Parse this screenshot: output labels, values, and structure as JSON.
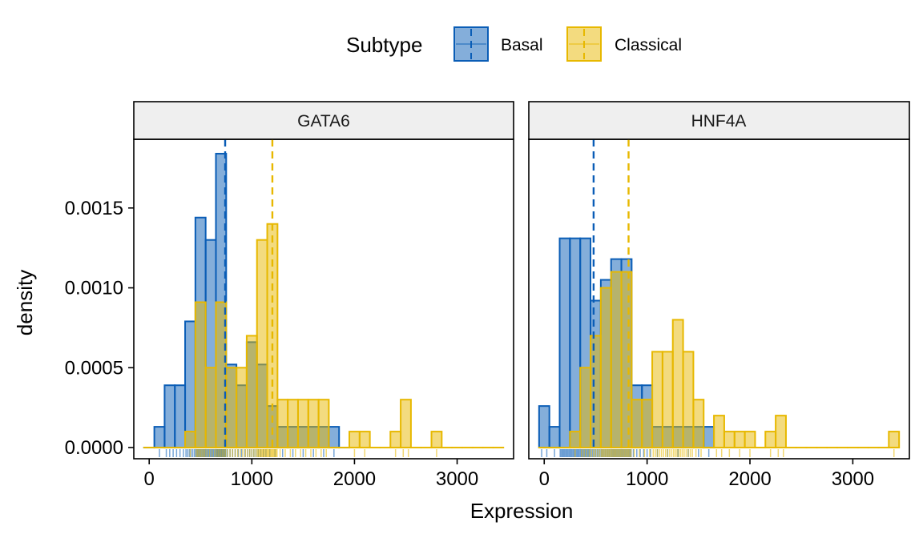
{
  "chart_data": {
    "type": "histogram",
    "xlabel": "Expression",
    "ylabel": "density",
    "legend": {
      "title": "Subtype",
      "position": "top",
      "entries": [
        {
          "name": "Basal",
          "color": "#0A5DB6"
        },
        {
          "name": "Classical",
          "color": "#E7B800"
        }
      ]
    },
    "binwidth": 100,
    "xlim": [
      -150,
      3550
    ],
    "ylim": [
      -7e-05,
      0.00193
    ],
    "x_ticks": [
      0,
      1000,
      2000,
      3000
    ],
    "y_ticks": [
      0.0,
      0.0005,
      0.001,
      0.0015
    ],
    "y_tick_labels": [
      "0.0000",
      "0.0005",
      "0.0010",
      "0.0015"
    ],
    "x_tick_labels": [
      "0",
      "1000",
      "2000",
      "3000"
    ],
    "grid": false,
    "panels": [
      {
        "strip": "GATA6",
        "series": [
          {
            "name": "Basal",
            "bin_centers": [
              0,
              100,
              200,
              300,
              400,
              500,
              600,
              700,
              800,
              900,
              1000,
              1100,
              1200,
              1300,
              1400,
              1500,
              1600,
              1700,
              1800,
              1900
            ],
            "density": [
              0,
              0.00013,
              0.00039,
              0.00039,
              0.00079,
              0.00144,
              0.0013,
              0.00184,
              0.00052,
              0.00039,
              0.00066,
              0.00052,
              0.00026,
              0.00013,
              0.00013,
              0.00013,
              0.00013,
              0.00013,
              0.00013,
              0
            ],
            "mean": 740
          },
          {
            "name": "Classical",
            "bin_centers": [
              0,
              100,
              200,
              300,
              400,
              500,
              600,
              700,
              800,
              900,
              1000,
              1100,
              1200,
              1300,
              1400,
              1500,
              1600,
              1700,
              1800,
              1900,
              2000,
              2100,
              2200,
              2300,
              2400,
              2500,
              2600,
              2700,
              2800,
              2900,
              3000,
              3100,
              3200,
              3300,
              3400
            ],
            "density": [
              0,
              0,
              0,
              0,
              0.0001,
              0.00091,
              0.0005,
              0.00091,
              0.0005,
              0.0005,
              0.0007,
              0.0013,
              0.0014,
              0.0003,
              0.0003,
              0.0003,
              0.0003,
              0.0003,
              0,
              0,
              0.0001,
              0.0001,
              0,
              0,
              0.0001,
              0.0003,
              0,
              0,
              0.0001,
              0,
              0,
              0,
              0,
              0,
              0
            ],
            "mean": 1200
          }
        ]
      },
      {
        "strip": "HNF4A",
        "series": [
          {
            "name": "Basal",
            "bin_centers": [
              0,
              100,
              200,
              300,
              400,
              500,
              600,
              700,
              800,
              900,
              1000,
              1100,
              1200,
              1300,
              1400,
              1500,
              1600
            ],
            "density": [
              0.00026,
              0.00013,
              0.00131,
              0.00131,
              0.00131,
              0.00092,
              0.00105,
              0.00118,
              0.00118,
              0.00039,
              0.00039,
              0.00013,
              0.00013,
              0.00013,
              0.00013,
              0.00013,
              0.00013
            ],
            "mean": 480
          },
          {
            "name": "Classical",
            "bin_centers": [
              0,
              100,
              200,
              300,
              400,
              500,
              600,
              700,
              800,
              900,
              1000,
              1100,
              1200,
              1300,
              1400,
              1500,
              1600,
              1700,
              1800,
              1900,
              2000,
              2100,
              2200,
              2300,
              2400,
              2500,
              2600,
              2700,
              2800,
              2900,
              3000,
              3100,
              3200,
              3300,
              3400
            ],
            "density": [
              0,
              0,
              0,
              0.0001,
              0.0005,
              0.0007,
              0.001,
              0.0011,
              0.0011,
              0.0003,
              0.0003,
              0.0006,
              0.0006,
              0.0008,
              0.0006,
              0.0003,
              0,
              0.0002,
              0.0001,
              0.0001,
              0.0001,
              0,
              0.0001,
              0.0002,
              0,
              0,
              0,
              0,
              0,
              0,
              0,
              0,
              0,
              0,
              0.0001
            ],
            "mean": 820
          }
        ]
      }
    ]
  }
}
